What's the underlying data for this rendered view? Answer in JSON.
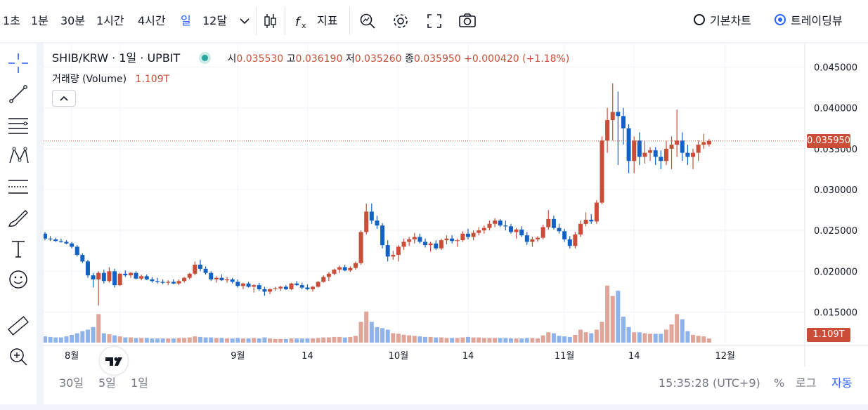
{
  "toolbar": {
    "intervals": [
      "1초",
      "1분",
      "30분",
      "1시간",
      "4시간",
      "일",
      "12달"
    ],
    "active_interval": "일",
    "indicators_label": "지표",
    "chart_types": [
      "기본차트",
      "트레이딩뷰"
    ],
    "selected_chart_type": "트레이딩뷰"
  },
  "legend": {
    "symbol": "SHIB/KRW · 1일 · UPBIT",
    "open_label": "시",
    "open": "0.035530",
    "high_label": "고",
    "high": "0.036190",
    "low_label": "저",
    "low": "0.035260",
    "close_label": "종",
    "close": "0.035950",
    "change": "+0.000420 (+1.18%)",
    "volume_label": "거래량 (Volume)",
    "volume_value": "1.109T"
  },
  "bottom": {
    "ranges": [
      "30일",
      "5일",
      "1일"
    ],
    "time": "15:35:28 (UTC+9)",
    "percent": "%",
    "log": "로그",
    "auto": "자동"
  },
  "colors": {
    "up": "#ca4d37",
    "down": "#1261c4",
    "up_vol": "#e0a498",
    "down_vol": "#8db3ea",
    "accent": "#2962ff"
  },
  "chart_data": {
    "type": "candlestick",
    "symbol": "SHIB/KRW",
    "interval": "1D",
    "y_ticks": [
      "0.045000",
      "0.040000",
      "0.035000",
      "0.030000",
      "0.025000",
      "0.020000",
      "0.015000"
    ],
    "y_tick_values": [
      0.045,
      0.04,
      0.035,
      0.03,
      0.025,
      0.02,
      0.015
    ],
    "ylim": [
      0.0135,
      0.0465
    ],
    "x_labels": [
      {
        "label": "8월",
        "day": 5
      },
      {
        "label": "14",
        "day": 14
      },
      {
        "label": "9월",
        "day": 36
      },
      {
        "label": "14",
        "day": 49
      },
      {
        "label": "10월",
        "day": 66
      },
      {
        "label": "14",
        "day": 79
      },
      {
        "label": "11월",
        "day": 97
      },
      {
        "label": "14",
        "day": 110
      },
      {
        "label": "12월",
        "day": 127
      }
    ],
    "last_price": "0.035950",
    "last_price_value": 0.03595,
    "last_volume": "1.109T",
    "volume_max": 1.3,
    "candles": [
      [
        0.0246,
        0.0248,
        0.0238,
        0.024,
        0.12
      ],
      [
        0.024,
        0.0243,
        0.0237,
        0.0239,
        0.11
      ],
      [
        0.0239,
        0.0241,
        0.0236,
        0.0237,
        0.1
      ],
      [
        0.0237,
        0.024,
        0.0235,
        0.0236,
        0.1
      ],
      [
        0.0236,
        0.0238,
        0.0233,
        0.0234,
        0.12
      ],
      [
        0.0234,
        0.0236,
        0.0228,
        0.023,
        0.15
      ],
      [
        0.023,
        0.0232,
        0.0218,
        0.022,
        0.18
      ],
      [
        0.022,
        0.0222,
        0.021,
        0.0212,
        0.22
      ],
      [
        0.0212,
        0.0214,
        0.0192,
        0.0195,
        0.25
      ],
      [
        0.0195,
        0.0198,
        0.018,
        0.019,
        0.3
      ],
      [
        0.019,
        0.02,
        0.0158,
        0.0198,
        0.55
      ],
      [
        0.0198,
        0.0202,
        0.0185,
        0.0188,
        0.18
      ],
      [
        0.0188,
        0.0205,
        0.0186,
        0.02,
        0.16
      ],
      [
        0.02,
        0.0203,
        0.018,
        0.0183,
        0.14
      ],
      [
        0.0183,
        0.0198,
        0.0182,
        0.0197,
        0.12
      ],
      [
        0.0197,
        0.0201,
        0.0193,
        0.0195,
        0.1
      ],
      [
        0.0195,
        0.0199,
        0.0192,
        0.0198,
        0.1
      ],
      [
        0.0198,
        0.02,
        0.019,
        0.0191,
        0.09
      ],
      [
        0.0191,
        0.0196,
        0.0189,
        0.0194,
        0.09
      ],
      [
        0.0194,
        0.0196,
        0.0189,
        0.019,
        0.09
      ],
      [
        0.019,
        0.0193,
        0.0186,
        0.0188,
        0.08
      ],
      [
        0.0188,
        0.0192,
        0.0185,
        0.0187,
        0.08
      ],
      [
        0.0187,
        0.019,
        0.0184,
        0.0186,
        0.08
      ],
      [
        0.0186,
        0.0189,
        0.0183,
        0.0187,
        0.08
      ],
      [
        0.0187,
        0.019,
        0.0184,
        0.0185,
        0.08
      ],
      [
        0.0185,
        0.019,
        0.0183,
        0.0188,
        0.09
      ],
      [
        0.0188,
        0.0193,
        0.0186,
        0.0192,
        0.09
      ],
      [
        0.0192,
        0.0198,
        0.019,
        0.0197,
        0.1
      ],
      [
        0.0197,
        0.0212,
        0.0195,
        0.0208,
        0.12
      ],
      [
        0.0208,
        0.0214,
        0.02,
        0.0203,
        0.11
      ],
      [
        0.0203,
        0.0206,
        0.0196,
        0.0198,
        0.1
      ],
      [
        0.0198,
        0.02,
        0.0188,
        0.019,
        0.1
      ],
      [
        0.019,
        0.0194,
        0.0186,
        0.0192,
        0.09
      ],
      [
        0.0192,
        0.0196,
        0.0188,
        0.0189,
        0.09
      ],
      [
        0.0189,
        0.0193,
        0.0186,
        0.019,
        0.08
      ],
      [
        0.019,
        0.0192,
        0.0185,
        0.0187,
        0.08
      ],
      [
        0.0187,
        0.019,
        0.018,
        0.0182,
        0.09
      ],
      [
        0.0182,
        0.0186,
        0.0178,
        0.0185,
        0.08
      ],
      [
        0.0185,
        0.0187,
        0.018,
        0.0181,
        0.08
      ],
      [
        0.0181,
        0.0184,
        0.0174,
        0.0183,
        0.09
      ],
      [
        0.0183,
        0.0186,
        0.0176,
        0.0178,
        0.08
      ],
      [
        0.0178,
        0.0181,
        0.017,
        0.0175,
        0.1
      ],
      [
        0.0175,
        0.0179,
        0.0172,
        0.0178,
        0.08
      ],
      [
        0.0178,
        0.0181,
        0.0176,
        0.0179,
        0.07
      ],
      [
        0.0179,
        0.0182,
        0.0176,
        0.0181,
        0.07
      ],
      [
        0.0181,
        0.0183,
        0.0177,
        0.0178,
        0.07
      ],
      [
        0.0178,
        0.0186,
        0.0177,
        0.0185,
        0.08
      ],
      [
        0.0185,
        0.0188,
        0.0182,
        0.0183,
        0.08
      ],
      [
        0.0183,
        0.0186,
        0.0178,
        0.018,
        0.08
      ],
      [
        0.018,
        0.0184,
        0.0177,
        0.0178,
        0.08
      ],
      [
        0.0178,
        0.0182,
        0.0175,
        0.0181,
        0.08
      ],
      [
        0.0181,
        0.0188,
        0.018,
        0.0187,
        0.09
      ],
      [
        0.0187,
        0.0195,
        0.0186,
        0.0193,
        0.1
      ],
      [
        0.0193,
        0.0199,
        0.0188,
        0.0197,
        0.1
      ],
      [
        0.0197,
        0.0203,
        0.0195,
        0.0202,
        0.11
      ],
      [
        0.0202,
        0.0207,
        0.0198,
        0.0205,
        0.11
      ],
      [
        0.0205,
        0.0208,
        0.02,
        0.0201,
        0.1
      ],
      [
        0.0201,
        0.0206,
        0.0199,
        0.0204,
        0.11
      ],
      [
        0.0204,
        0.0212,
        0.0202,
        0.021,
        0.13
      ],
      [
        0.021,
        0.025,
        0.0208,
        0.0248,
        0.4
      ],
      [
        0.0248,
        0.0283,
        0.0245,
        0.0273,
        0.6
      ],
      [
        0.0273,
        0.0283,
        0.0258,
        0.0262,
        0.4
      ],
      [
        0.0262,
        0.0268,
        0.0252,
        0.0256,
        0.3
      ],
      [
        0.0256,
        0.0259,
        0.0228,
        0.0232,
        0.28
      ],
      [
        0.0232,
        0.0238,
        0.0212,
        0.0218,
        0.25
      ],
      [
        0.0218,
        0.0225,
        0.0214,
        0.022,
        0.18
      ],
      [
        0.022,
        0.0232,
        0.0212,
        0.023,
        0.17
      ],
      [
        0.023,
        0.024,
        0.0226,
        0.0236,
        0.15
      ],
      [
        0.0236,
        0.0242,
        0.0231,
        0.0239,
        0.14
      ],
      [
        0.0239,
        0.0247,
        0.0234,
        0.0242,
        0.13
      ],
      [
        0.0242,
        0.0246,
        0.0234,
        0.0236,
        0.12
      ],
      [
        0.0236,
        0.024,
        0.0229,
        0.0232,
        0.11
      ],
      [
        0.0232,
        0.0236,
        0.0224,
        0.0234,
        0.11
      ],
      [
        0.0234,
        0.0238,
        0.0226,
        0.0228,
        0.1
      ],
      [
        0.0228,
        0.024,
        0.0226,
        0.0238,
        0.1
      ],
      [
        0.0238,
        0.0244,
        0.0233,
        0.024,
        0.09
      ],
      [
        0.024,
        0.0244,
        0.0234,
        0.0237,
        0.09
      ],
      [
        0.0237,
        0.024,
        0.023,
        0.0238,
        0.09
      ],
      [
        0.0238,
        0.0249,
        0.0236,
        0.0246,
        0.1
      ],
      [
        0.0246,
        0.0252,
        0.0239,
        0.0242,
        0.11
      ],
      [
        0.0242,
        0.025,
        0.0238,
        0.0247,
        0.1
      ],
      [
        0.0247,
        0.0254,
        0.0244,
        0.025,
        0.1
      ],
      [
        0.025,
        0.0256,
        0.0246,
        0.0253,
        0.09
      ],
      [
        0.0253,
        0.0262,
        0.025,
        0.0258,
        0.09
      ],
      [
        0.0258,
        0.0265,
        0.0254,
        0.0262,
        0.09
      ],
      [
        0.0262,
        0.0264,
        0.0254,
        0.0256,
        0.09
      ],
      [
        0.0256,
        0.0262,
        0.025,
        0.0255,
        0.09
      ],
      [
        0.0255,
        0.0258,
        0.0246,
        0.0248,
        0.08
      ],
      [
        0.0248,
        0.0253,
        0.024,
        0.0251,
        0.08
      ],
      [
        0.0251,
        0.0255,
        0.0242,
        0.0244,
        0.08
      ],
      [
        0.0244,
        0.0248,
        0.0232,
        0.0236,
        0.09
      ],
      [
        0.0236,
        0.0242,
        0.023,
        0.0239,
        0.09
      ],
      [
        0.0239,
        0.0243,
        0.0236,
        0.0241,
        0.08
      ],
      [
        0.0241,
        0.0257,
        0.0239,
        0.0254,
        0.14
      ],
      [
        0.0254,
        0.0275,
        0.0251,
        0.0264,
        0.2
      ],
      [
        0.0264,
        0.0268,
        0.0251,
        0.0253,
        0.18
      ],
      [
        0.0253,
        0.0258,
        0.0246,
        0.0249,
        0.13
      ],
      [
        0.0249,
        0.0252,
        0.0236,
        0.0239,
        0.12
      ],
      [
        0.0239,
        0.0243,
        0.0228,
        0.0231,
        0.11
      ],
      [
        0.0231,
        0.0248,
        0.0228,
        0.0245,
        0.15
      ],
      [
        0.0245,
        0.0262,
        0.0242,
        0.0258,
        0.25
      ],
      [
        0.0258,
        0.0272,
        0.0255,
        0.0263,
        0.2
      ],
      [
        0.0263,
        0.027,
        0.0258,
        0.0261,
        0.18
      ],
      [
        0.0261,
        0.0287,
        0.0258,
        0.0284,
        0.25
      ],
      [
        0.0284,
        0.0365,
        0.0282,
        0.036,
        0.4
      ],
      [
        0.036,
        0.04,
        0.0345,
        0.0385,
        1.1
      ],
      [
        0.0385,
        0.043,
        0.036,
        0.0395,
        0.9
      ],
      [
        0.0395,
        0.042,
        0.033,
        0.039,
        1.0
      ],
      [
        0.039,
        0.04,
        0.0355,
        0.0375,
        0.5
      ],
      [
        0.0375,
        0.038,
        0.032,
        0.0335,
        0.3
      ],
      [
        0.0335,
        0.0365,
        0.032,
        0.036,
        0.2
      ],
      [
        0.036,
        0.037,
        0.033,
        0.034,
        0.2
      ],
      [
        0.034,
        0.036,
        0.0332,
        0.0345,
        0.18
      ],
      [
        0.0345,
        0.0352,
        0.0335,
        0.0348,
        0.17
      ],
      [
        0.0348,
        0.0352,
        0.033,
        0.034,
        0.17
      ],
      [
        0.034,
        0.0348,
        0.0325,
        0.0335,
        0.17
      ],
      [
        0.0335,
        0.036,
        0.033,
        0.035,
        0.25
      ],
      [
        0.035,
        0.0365,
        0.0325,
        0.0355,
        0.35
      ],
      [
        0.0355,
        0.0398,
        0.034,
        0.036,
        0.55
      ],
      [
        0.036,
        0.037,
        0.0335,
        0.0345,
        0.45
      ],
      [
        0.0345,
        0.0355,
        0.033,
        0.034,
        0.22
      ],
      [
        0.034,
        0.035,
        0.0325,
        0.0345,
        0.15
      ],
      [
        0.0345,
        0.036,
        0.0335,
        0.0355,
        0.13
      ],
      [
        0.0355,
        0.0368,
        0.035,
        0.0358,
        0.12
      ],
      [
        0.03553,
        0.03619,
        0.03526,
        0.03595,
        0.08
      ]
    ]
  }
}
